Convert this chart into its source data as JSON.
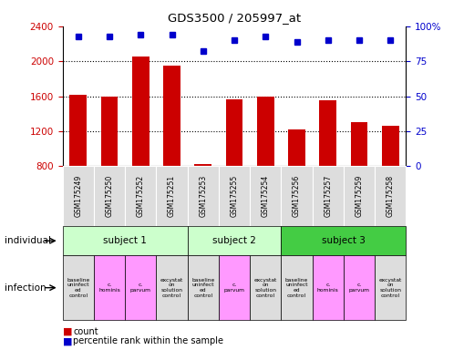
{
  "title": "GDS3500 / 205997_at",
  "gsm_labels": [
    "GSM175249",
    "GSM175250",
    "GSM175252",
    "GSM175251",
    "GSM175253",
    "GSM175255",
    "GSM175254",
    "GSM175256",
    "GSM175257",
    "GSM175259",
    "GSM175258"
  ],
  "counts": [
    1620,
    1600,
    2050,
    1950,
    820,
    1560,
    1600,
    1225,
    1555,
    1300,
    1265
  ],
  "percentile_ranks": [
    93,
    93,
    94,
    94,
    82,
    90,
    93,
    89,
    90,
    90,
    90
  ],
  "ylim_left": [
    800,
    2400
  ],
  "ylim_right": [
    0,
    100
  ],
  "yticks_left": [
    800,
    1200,
    1600,
    2000,
    2400
  ],
  "yticks_right": [
    0,
    25,
    50,
    75,
    100
  ],
  "bar_color": "#cc0000",
  "dot_color": "#0000cc",
  "subjects": [
    {
      "label": "subject 1",
      "start": 0,
      "end": 4,
      "color": "#ccffcc"
    },
    {
      "label": "subject 2",
      "start": 4,
      "end": 7,
      "color": "#ccffcc"
    },
    {
      "label": "subject 3",
      "start": 7,
      "end": 11,
      "color": "#44cc44"
    }
  ],
  "infection_labels": [
    "baseline\nuninfect\ned\ncontrol",
    "c.\nhominis",
    "c.\nparvum",
    "excystat\non\nsolution\ncontrol",
    "baseline\nuninfect\ned\ncontrol",
    "c.\nparvum",
    "excystat\non\nsolution\ncontrol",
    "baseline\nuninfect\ned\ncontrol",
    "c.\nhominis",
    "c.\nparvum",
    "excystat\non\nsolution\ncontrol"
  ],
  "infection_colors": [
    "#dddddd",
    "#ff99ff",
    "#ff99ff",
    "#dddddd",
    "#dddddd",
    "#ff99ff",
    "#dddddd",
    "#dddddd",
    "#ff99ff",
    "#ff99ff",
    "#dddddd"
  ],
  "ylabel_left_color": "#cc0000",
  "ylabel_right_color": "#0000cc",
  "legend_count_color": "#cc0000",
  "legend_dot_color": "#0000cc",
  "dotted_line_color": "#000000",
  "gsm_bg_color": "#dddddd",
  "bg_color": "#ffffff"
}
